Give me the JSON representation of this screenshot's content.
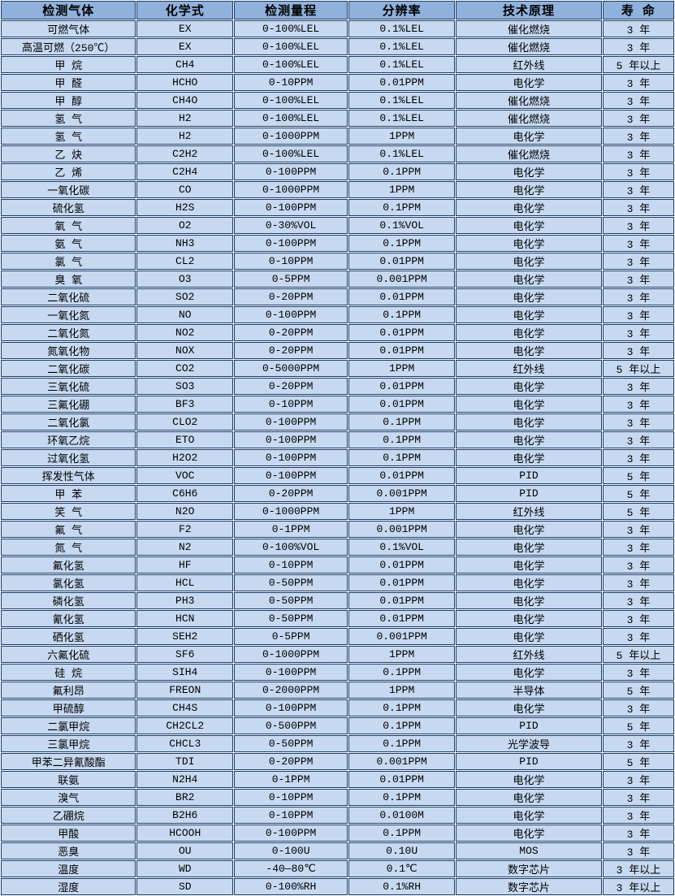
{
  "table": {
    "columns": [
      {
        "label": "检测气体"
      },
      {
        "label": "化学式"
      },
      {
        "label": "检测量程"
      },
      {
        "label": "分辨率"
      },
      {
        "label": "技术原理"
      },
      {
        "label": "寿 命"
      }
    ],
    "rows": [
      [
        "可燃气体",
        "EX",
        "0-100%LEL",
        "0.1%LEL",
        "催化燃烧",
        "3 年"
      ],
      [
        "高温可燃（250℃）",
        "EX",
        "0-100%LEL",
        "0.1%LEL",
        "催化燃烧",
        "3 年"
      ],
      [
        "甲 烷",
        "CH4",
        "0-100%LEL",
        "0.1%LEL",
        "红外线",
        "5 年以上"
      ],
      [
        "甲 醛",
        "HCHO",
        "0-10PPM",
        "0.01PPM",
        "电化学",
        "3 年"
      ],
      [
        "甲 醇",
        "CH4O",
        "0-100%LEL",
        "0.1%LEL",
        "催化燃烧",
        "3 年"
      ],
      [
        "氢 气",
        "H2",
        "0-100%LEL",
        "0.1%LEL",
        "催化燃烧",
        "3 年"
      ],
      [
        "氢 气",
        "H2",
        "0-1000PPM",
        "1PPM",
        "电化学",
        "3 年"
      ],
      [
        "乙 炔",
        "C2H2",
        "0-100%LEL",
        "0.1%LEL",
        "催化燃烧",
        "3 年"
      ],
      [
        "乙 烯",
        "C2H4",
        "0-100PPM",
        "0.1PPM",
        "电化学",
        "3 年"
      ],
      [
        "一氧化碳",
        "CO",
        "0-1000PPM",
        "1PPM",
        "电化学",
        "3 年"
      ],
      [
        "硫化氢",
        "H2S",
        "0-100PPM",
        "0.1PPM",
        "电化学",
        "3 年"
      ],
      [
        "氧 气",
        "O2",
        "0-30%VOL",
        "0.1%VOL",
        "电化学",
        "3 年"
      ],
      [
        "氨 气",
        "NH3",
        "0-100PPM",
        "0.1PPM",
        "电化学",
        "3 年"
      ],
      [
        "氯 气",
        "CL2",
        "0-10PPM",
        "0.01PPM",
        "电化学",
        "3 年"
      ],
      [
        "臭 氧",
        "O3",
        "0-5PPM",
        "0.001PPM",
        "电化学",
        "3 年"
      ],
      [
        "二氧化硫",
        "SO2",
        "0-20PPM",
        "0.01PPM",
        "电化学",
        "3 年"
      ],
      [
        "一氧化氮",
        "NO",
        "0-100PPM",
        "0.1PPM",
        "电化学",
        "3 年"
      ],
      [
        "二氧化氮",
        "NO2",
        "0-20PPM",
        "0.01PPM",
        "电化学",
        "3 年"
      ],
      [
        "氮氧化物",
        "NOX",
        "0-20PPM",
        "0.01PPM",
        "电化学",
        "3 年"
      ],
      [
        "二氧化碳",
        "CO2",
        "0-5000PPM",
        "1PPM",
        "红外线",
        "5 年以上"
      ],
      [
        "三氧化硫",
        "SO3",
        "0-20PPM",
        "0.01PPM",
        "电化学",
        "3 年"
      ],
      [
        "三氟化硼",
        "BF3",
        "0-10PPM",
        "0.01PPM",
        "电化学",
        "3 年"
      ],
      [
        "二氧化氯",
        "CLO2",
        "0-100PPM",
        "0.1PPM",
        "电化学",
        "3 年"
      ],
      [
        "环氧乙烷",
        "ETO",
        "0-100PPM",
        "0.1PPM",
        "电化学",
        "3 年"
      ],
      [
        "过氧化氢",
        "H2O2",
        "0-100PPM",
        "0.1PPM",
        "电化学",
        "3 年"
      ],
      [
        "挥发性气体",
        "VOC",
        "0-100PPM",
        "0.01PPM",
        "PID",
        "5 年"
      ],
      [
        "甲 苯",
        "C6H6",
        "0-20PPM",
        "0.001PPM",
        "PID",
        "5 年"
      ],
      [
        "笑 气",
        "N2O",
        "0-1000PPM",
        "1PPM",
        "红外线",
        "5 年"
      ],
      [
        "氟 气",
        "F2",
        "0-1PPM",
        "0.001PPM",
        "电化学",
        "3 年"
      ],
      [
        "氮 气",
        "N2",
        "0-100%VOL",
        "0.1%VOL",
        "电化学",
        "3 年"
      ],
      [
        "氟化氢",
        "HF",
        "0-10PPM",
        "0.01PPM",
        "电化学",
        "3 年"
      ],
      [
        "氯化氢",
        "HCL",
        "0-50PPM",
        "0.01PPM",
        "电化学",
        "3 年"
      ],
      [
        "磷化氢",
        "PH3",
        "0-50PPM",
        "0.01PPM",
        "电化学",
        "3 年"
      ],
      [
        "氰化氢",
        "HCN",
        "0-50PPM",
        "0.01PPM",
        "电化学",
        "3 年"
      ],
      [
        "硒化氢",
        "SEH2",
        "0-5PPM",
        "0.001PPM",
        "电化学",
        "3 年"
      ],
      [
        "六氟化硫",
        "SF6",
        "0-1000PPM",
        "1PPM",
        "红外线",
        "5 年以上"
      ],
      [
        "硅 烷",
        "SIH4",
        "0-100PPM",
        "0.1PPM",
        "电化学",
        "3 年"
      ],
      [
        "氟利昂",
        "FREON",
        "0-2000PPM",
        "1PPM",
        "半导体",
        "5 年"
      ],
      [
        "甲硫醇",
        "CH4S",
        "0-100PPM",
        "0.1PPM",
        "电化学",
        "3 年"
      ],
      [
        "二氯甲烷",
        "CH2CL2",
        "0-500PPM",
        "0.1PPM",
        "PID",
        "5 年"
      ],
      [
        "三氯甲烷",
        "CHCL3",
        "0-50PPM",
        "0.1PPM",
        "光学波导",
        "3 年"
      ],
      [
        "甲苯二异氰酸酯",
        "TDI",
        "0-20PPM",
        "0.001PPM",
        "PID",
        "5 年"
      ],
      [
        "联氨",
        "N2H4",
        "0-1PPM",
        "0.01PPM",
        "电化学",
        "3 年"
      ],
      [
        "溴气",
        "BR2",
        "0-10PPM",
        "0.1PPM",
        "电化学",
        "3 年"
      ],
      [
        "乙硼烷",
        "B2H6",
        "0-10PPM",
        "0.0100M",
        "电化学",
        "3 年"
      ],
      [
        "甲酸",
        "HCOOH",
        "0-100PPM",
        "0.1PPM",
        "电化学",
        "3 年"
      ],
      [
        "恶臭",
        "OU",
        "0-100U",
        "0.10U",
        "MOS",
        "3 年"
      ],
      [
        "温度",
        "WD",
        "-40—80℃",
        "0.1℃",
        "数字芯片",
        "3 年以上"
      ],
      [
        "湿度",
        "SD",
        "0-100%RH",
        "0.1%RH",
        "数字芯片",
        "3 年以上"
      ]
    ]
  },
  "colors": {
    "header_bg": "#8fb1dc",
    "row_bg": "#c6d9f1",
    "border": "#1c3b63",
    "gap": "#ffffff",
    "text": "#000000"
  }
}
